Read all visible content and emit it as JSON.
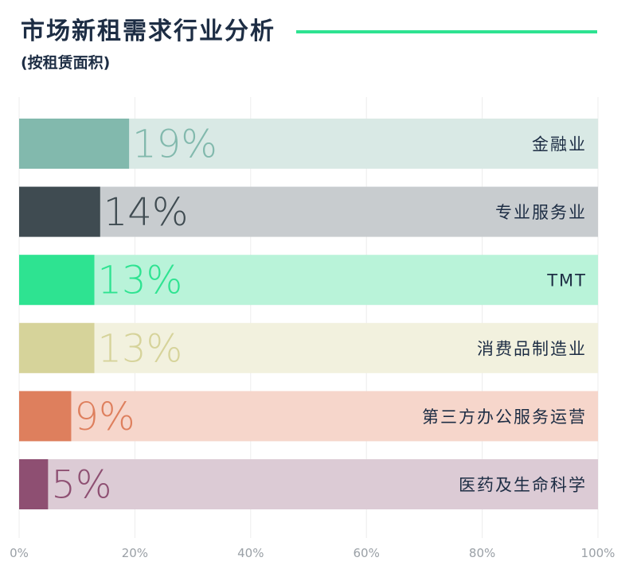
{
  "header": {
    "title": "市场新租需求行业分析",
    "subtitle": "(按租赁面积)",
    "accent_color": "#2ee391"
  },
  "chart_data": {
    "type": "bar",
    "orientation": "horizontal",
    "title": "市场新租需求行业分析",
    "subtitle": "(按租赁面积)",
    "xlim": [
      0,
      100
    ],
    "x_ticks": [
      "0%",
      "20%",
      "40%",
      "60%",
      "80%",
      "100%"
    ],
    "grid": true,
    "categories": [
      "金融业",
      "专业服务业",
      "TMT",
      "消费品制造业",
      "第三方办公服务运营",
      "医药及生命科学"
    ],
    "values": [
      19,
      14,
      13,
      13,
      9,
      5
    ],
    "value_labels": [
      "19%",
      "14%",
      "13%",
      "13%",
      "9%",
      "5%"
    ],
    "colors": [
      "#82b9ad",
      "#3f4b51",
      "#2ee391",
      "#d6d39a",
      "#de7f5d",
      "#8e4f72"
    ],
    "track_colors": [
      "#d9e9e5",
      "#c8cccf",
      "#b9f3d9",
      "#f2f1de",
      "#f6d6cb",
      "#dccbd5"
    ]
  }
}
